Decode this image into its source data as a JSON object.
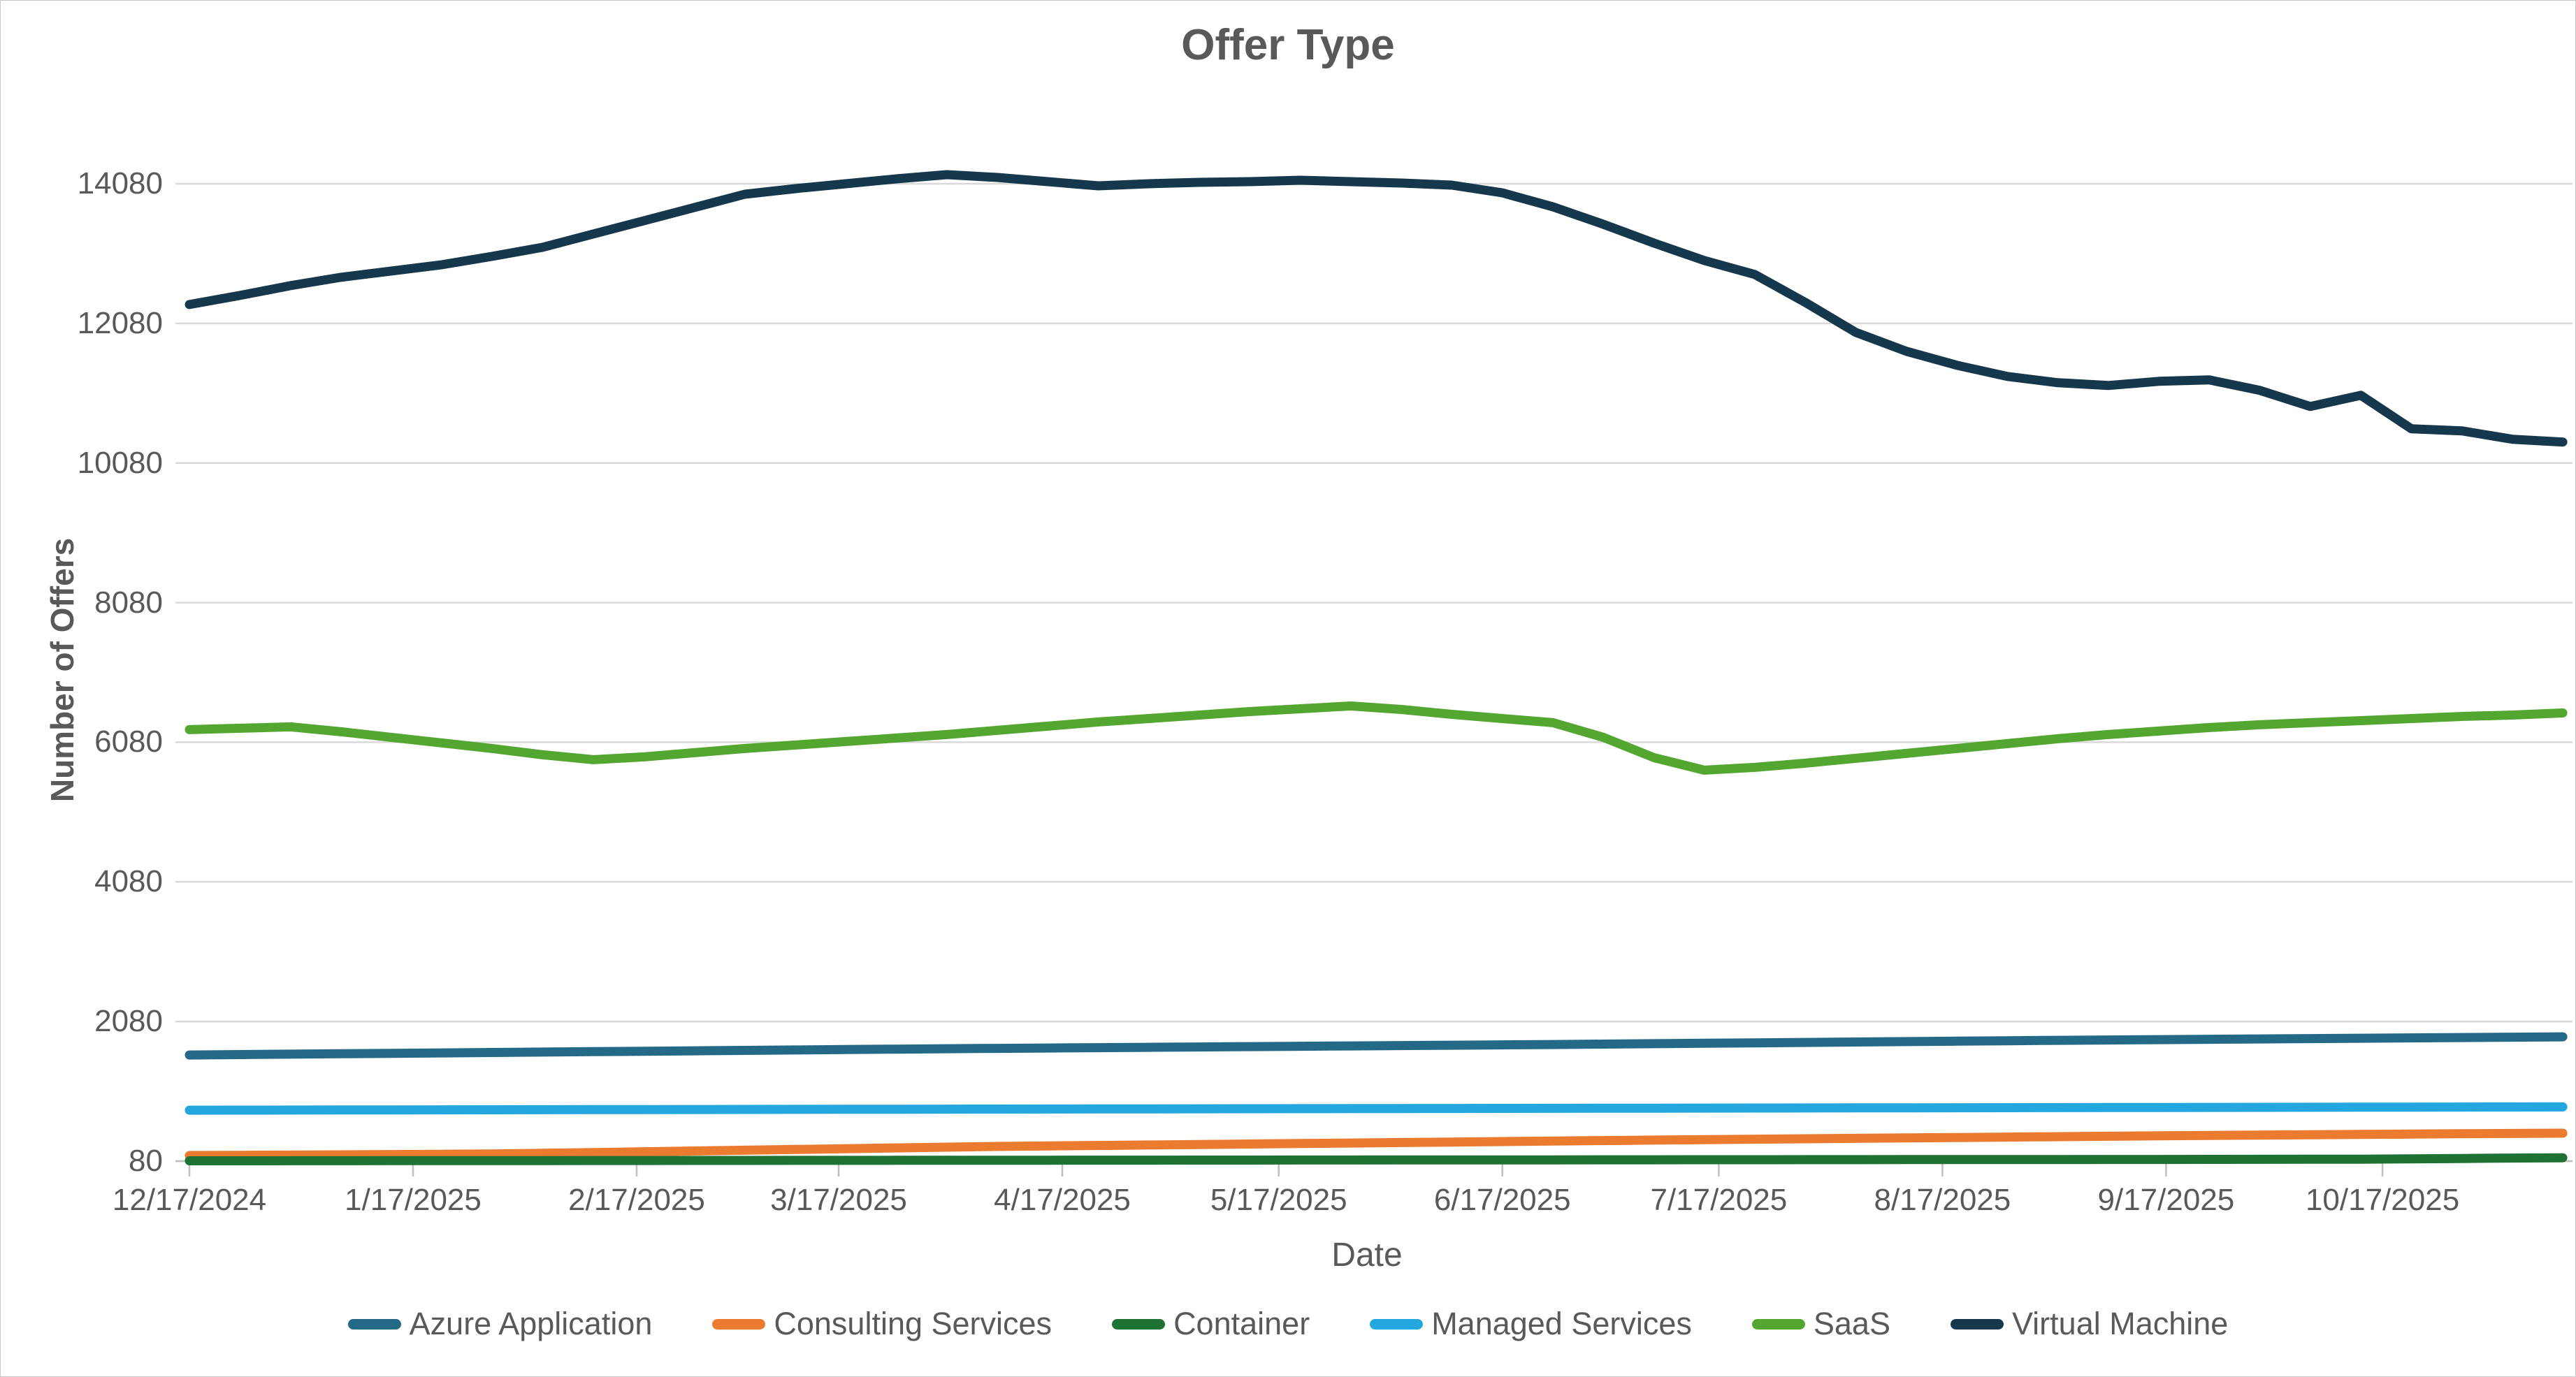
{
  "title": "Offer Type",
  "axes": {
    "x_label": "Date",
    "y_label": "Number of Offers"
  },
  "chart_data": {
    "type": "line",
    "title": "Offer Type",
    "xlabel": "Date",
    "ylabel": "Number of Offers",
    "grid": "horizontal",
    "legend_position": "bottom",
    "ylim": [
      80,
      14700
    ],
    "yticks": [
      80,
      2080,
      4080,
      6080,
      8080,
      10080,
      12080,
      14080
    ],
    "xticks": [
      "12/17/2024",
      "1/17/2025",
      "2/17/2025",
      "3/17/2025",
      "4/17/2025",
      "5/17/2025",
      "6/17/2025",
      "7/17/2025",
      "8/17/2025",
      "9/17/2025",
      "10/17/2025"
    ],
    "x": [
      "12/17/2024",
      "12/24/2024",
      "12/31/2024",
      "1/7/2025",
      "1/14/2025",
      "1/21/2025",
      "1/28/2025",
      "2/4/2025",
      "2/11/2025",
      "2/18/2025",
      "2/25/2025",
      "3/4/2025",
      "3/11/2025",
      "3/18/2025",
      "3/25/2025",
      "4/1/2025",
      "4/8/2025",
      "4/15/2025",
      "4/22/2025",
      "4/29/2025",
      "5/6/2025",
      "5/13/2025",
      "5/20/2025",
      "5/27/2025",
      "6/3/2025",
      "6/10/2025",
      "6/17/2025",
      "6/24/2025",
      "7/1/2025",
      "7/8/2025",
      "7/15/2025",
      "7/22/2025",
      "7/29/2025",
      "8/5/2025",
      "8/12/2025",
      "8/19/2025",
      "8/26/2025",
      "9/2/2025",
      "9/9/2025",
      "9/16/2025",
      "9/23/2025",
      "9/30/2025",
      "10/7/2025",
      "10/14/2025",
      "10/21/2025",
      "10/28/2025",
      "11/4/2025",
      "11/11/2025"
    ],
    "series": [
      {
        "name": "Azure Application",
        "color": "#246a87",
        "values": [
          1600,
          1606,
          1612,
          1618,
          1624,
          1630,
          1636,
          1642,
          1648,
          1654,
          1660,
          1666,
          1672,
          1678,
          1684,
          1690,
          1695,
          1700,
          1705,
          1710,
          1715,
          1720,
          1725,
          1730,
          1735,
          1740,
          1745,
          1750,
          1756,
          1762,
          1768,
          1774,
          1780,
          1786,
          1792,
          1798,
          1804,
          1810,
          1815,
          1820,
          1825,
          1830,
          1835,
          1840,
          1845,
          1850,
          1855,
          1860
        ]
      },
      {
        "name": "Consulting Services",
        "color": "#ea7b2f",
        "values": [
          160,
          163,
          166,
          170,
          174,
          178,
          182,
          192,
          203,
          214,
          225,
          236,
          247,
          258,
          269,
          280,
          290,
          297,
          304,
          311,
          318,
          325,
          332,
          339,
          346,
          353,
          360,
          367,
          374,
          381,
          388,
          394,
          400,
          406,
          412,
          418,
          424,
          430,
          436,
          442,
          448,
          453,
          458,
          462,
          467,
          472,
          476,
          480
        ]
      },
      {
        "name": "Container",
        "color": "#1e7234",
        "values": [
          85,
          85,
          86,
          86,
          87,
          87,
          88,
          88,
          89,
          89,
          90,
          90,
          91,
          91,
          92,
          92,
          93,
          93,
          94,
          94,
          95,
          95,
          96,
          96,
          97,
          97,
          98,
          98,
          99,
          99,
          100,
          100,
          101,
          101,
          102,
          102,
          103,
          103,
          104,
          104,
          105,
          106,
          107,
          108,
          112,
          118,
          124,
          128
        ]
      },
      {
        "name": "Managed Services",
        "color": "#24a7df",
        "values": [
          810,
          811,
          812,
          813,
          814,
          815,
          816,
          817,
          818,
          819,
          820,
          821,
          822,
          823,
          824,
          825,
          826,
          827,
          828,
          829,
          830,
          831,
          832,
          833,
          834,
          835,
          836,
          837,
          838,
          839,
          840,
          841,
          842,
          843,
          844,
          845,
          846,
          847,
          848,
          849,
          850,
          851,
          852,
          853,
          854,
          855,
          856,
          857
        ]
      },
      {
        "name": "SaaS",
        "color": "#53a62f",
        "values": [
          6260,
          6280,
          6300,
          6230,
          6150,
          6070,
          5990,
          5900,
          5830,
          5870,
          5930,
          5990,
          6040,
          6090,
          6140,
          6190,
          6250,
          6310,
          6370,
          6420,
          6470,
          6520,
          6560,
          6600,
          6550,
          6480,
          6420,
          6360,
          6150,
          5860,
          5680,
          5720,
          5780,
          5850,
          5920,
          5990,
          6060,
          6130,
          6190,
          6240,
          6290,
          6330,
          6360,
          6390,
          6420,
          6450,
          6470,
          6500
        ]
      },
      {
        "name": "Virtual Machine",
        "color": "#16384c",
        "values": [
          12350,
          12480,
          12620,
          12740,
          12830,
          12920,
          13040,
          13170,
          13360,
          13550,
          13740,
          13930,
          14010,
          14080,
          14150,
          14210,
          14170,
          14110,
          14050,
          14080,
          14100,
          14110,
          14130,
          14110,
          14090,
          14060,
          13950,
          13750,
          13500,
          13230,
          12980,
          12780,
          12380,
          11950,
          11680,
          11480,
          11320,
          11230,
          11190,
          11250,
          11270,
          11120,
          10890,
          11050,
          10570,
          10540,
          10420,
          10380
        ]
      }
    ]
  }
}
